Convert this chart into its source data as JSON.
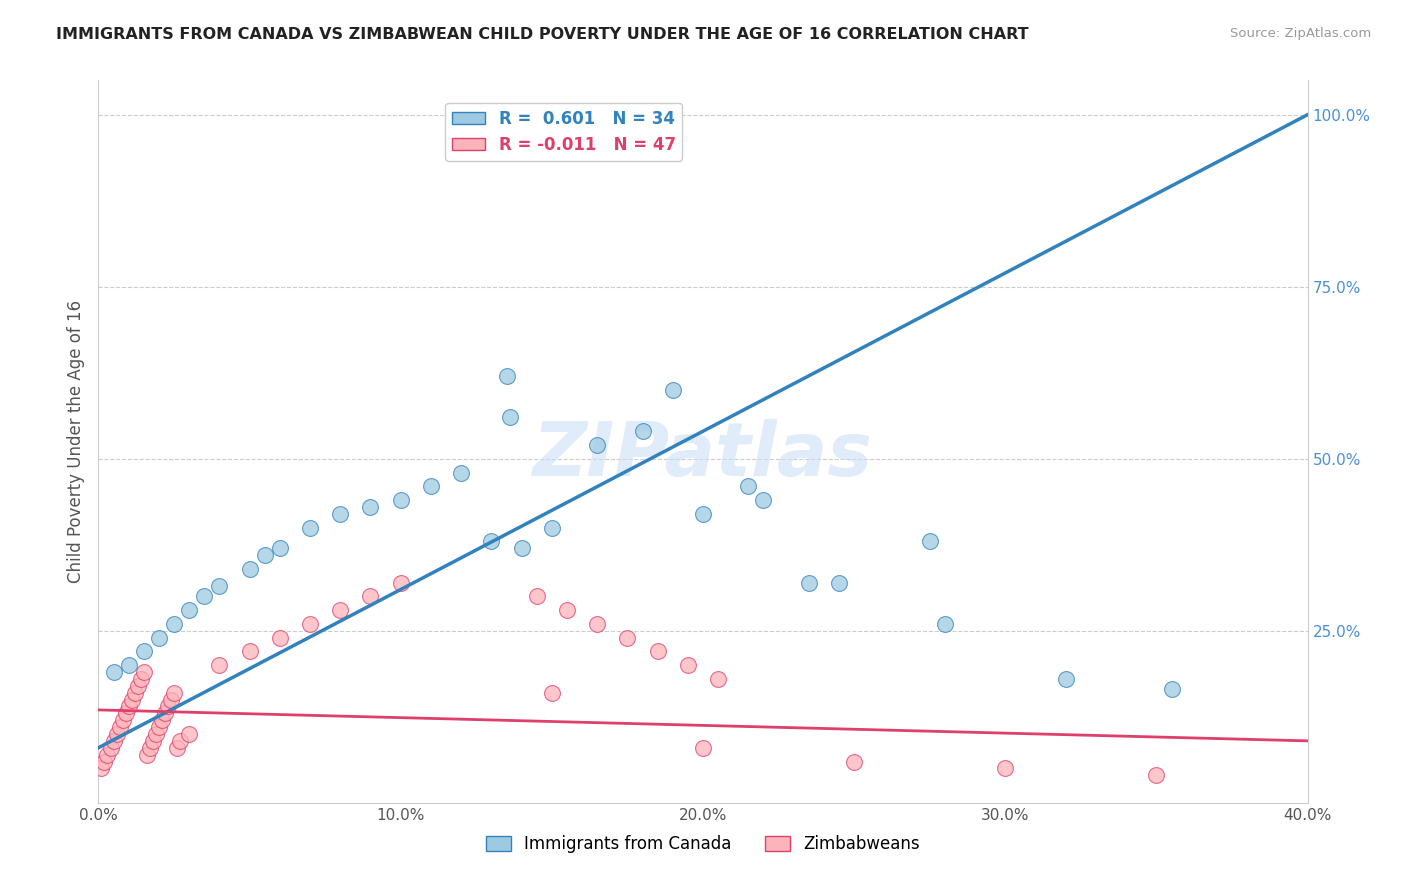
{
  "title": "IMMIGRANTS FROM CANADA VS ZIMBABWEAN CHILD POVERTY UNDER THE AGE OF 16 CORRELATION CHART",
  "source": "Source: ZipAtlas.com",
  "ylabel": "Child Poverty Under the Age of 16",
  "xlim": [
    0,
    0.4
  ],
  "ylim": [
    0,
    1.05
  ],
  "xtick_labels": [
    "0.0%",
    "10.0%",
    "20.0%",
    "30.0%",
    "40.0%"
  ],
  "xtick_values": [
    0.0,
    0.1,
    0.2,
    0.3,
    0.4
  ],
  "ytick_labels": [
    "25.0%",
    "50.0%",
    "75.0%",
    "100.0%"
  ],
  "ytick_values": [
    0.25,
    0.5,
    0.75,
    1.0
  ],
  "blue_scatter_x": [
    0.005,
    0.01,
    0.015,
    0.02,
    0.025,
    0.03,
    0.035,
    0.04,
    0.05,
    0.055,
    0.06,
    0.07,
    0.08,
    0.09,
    0.1,
    0.11,
    0.12,
    0.13,
    0.14,
    0.15,
    0.165,
    0.18,
    0.19,
    0.2,
    0.215,
    0.22,
    0.235,
    0.245,
    0.275,
    0.28,
    0.32,
    0.355,
    0.135,
    0.136
  ],
  "blue_scatter_y": [
    0.19,
    0.2,
    0.22,
    0.24,
    0.26,
    0.28,
    0.3,
    0.315,
    0.34,
    0.36,
    0.37,
    0.4,
    0.42,
    0.43,
    0.44,
    0.46,
    0.48,
    0.38,
    0.37,
    0.4,
    0.52,
    0.54,
    0.6,
    0.42,
    0.46,
    0.44,
    0.32,
    0.32,
    0.38,
    0.26,
    0.18,
    0.165,
    0.62,
    0.56
  ],
  "pink_scatter_x": [
    0.001,
    0.002,
    0.003,
    0.004,
    0.005,
    0.006,
    0.007,
    0.008,
    0.009,
    0.01,
    0.011,
    0.012,
    0.013,
    0.014,
    0.015,
    0.016,
    0.017,
    0.018,
    0.019,
    0.02,
    0.021,
    0.022,
    0.023,
    0.024,
    0.025,
    0.026,
    0.027,
    0.03,
    0.04,
    0.05,
    0.06,
    0.07,
    0.08,
    0.09,
    0.1,
    0.15,
    0.2,
    0.25,
    0.3,
    0.35,
    0.145,
    0.155,
    0.165,
    0.175,
    0.185,
    0.195,
    0.205
  ],
  "pink_scatter_y": [
    0.05,
    0.06,
    0.07,
    0.08,
    0.09,
    0.1,
    0.11,
    0.12,
    0.13,
    0.14,
    0.15,
    0.16,
    0.17,
    0.18,
    0.19,
    0.07,
    0.08,
    0.09,
    0.1,
    0.11,
    0.12,
    0.13,
    0.14,
    0.15,
    0.16,
    0.08,
    0.09,
    0.1,
    0.2,
    0.22,
    0.24,
    0.26,
    0.28,
    0.3,
    0.32,
    0.16,
    0.08,
    0.06,
    0.05,
    0.04,
    0.3,
    0.28,
    0.26,
    0.24,
    0.22,
    0.2,
    0.18
  ],
  "blue_line_x": [
    0.0,
    0.4
  ],
  "blue_line_y": [
    0.08,
    1.0
  ],
  "pink_line_x": [
    0.0,
    0.4
  ],
  "pink_line_y": [
    0.135,
    0.09
  ],
  "legend_blue_label": "R =  0.601   N = 34",
  "legend_pink_label": "R = -0.011   N = 47",
  "blue_color": "#9ecae1",
  "pink_color": "#fbb4b9",
  "blue_line_color": "#3182bd",
  "pink_line_color": "#de3f6b",
  "watermark": "ZIPatlas",
  "background_color": "#ffffff",
  "grid_color": "#cccccc"
}
